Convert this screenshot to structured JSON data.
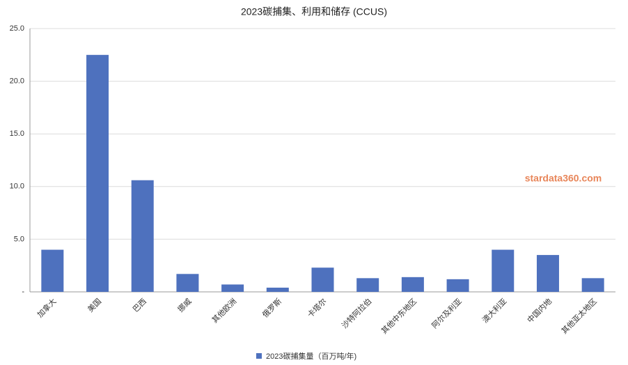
{
  "chart_data": {
    "type": "bar",
    "title": "2023碳捕集、利用和储存 (CCUS)",
    "watermark": "stardata360.com",
    "categories": [
      "加拿大",
      "美国",
      "巴西",
      "挪威",
      "其他欧洲",
      "俄罗斯",
      "卡塔尔",
      "沙特阿拉伯",
      "其他中东地区",
      "阿尔及利亚",
      "澳大利亚",
      "中国内地",
      "其他亚太地区"
    ],
    "series": [
      {
        "name": "2023碳捕集量（百万吨/年)",
        "color": "#4e71be",
        "values": [
          4.0,
          22.5,
          10.6,
          1.7,
          0.7,
          0.4,
          2.3,
          1.3,
          1.4,
          1.2,
          4.0,
          3.5,
          1.3
        ]
      }
    ],
    "ylim": [
      0,
      25
    ],
    "yticks": [
      {
        "value": 0,
        "label": "-"
      },
      {
        "value": 5,
        "label": "5.0"
      },
      {
        "value": 10,
        "label": "10.0"
      },
      {
        "value": 15,
        "label": "15.0"
      },
      {
        "value": 20,
        "label": "20.0"
      },
      {
        "value": 25,
        "label": "25.0"
      }
    ],
    "grid": true,
    "legend": "bottom"
  }
}
